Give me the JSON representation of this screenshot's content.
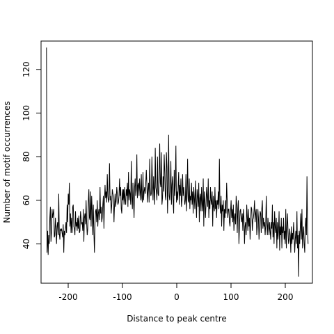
{
  "chart_data": {
    "type": "line",
    "title": "",
    "xlabel": "Distance to peak centre",
    "ylabel": "Number of motif occurrences",
    "xlim": [
      -250,
      250
    ],
    "ylim": [
      22,
      133
    ],
    "xticks": [
      -200,
      -100,
      0,
      100,
      200
    ],
    "yticks": [
      40,
      60,
      80,
      100,
      120
    ],
    "xtick_labels": [
      "-200",
      "-100",
      "0",
      "100",
      "200"
    ],
    "ytick_labels": [
      "40",
      "60",
      "80",
      "100",
      "120"
    ],
    "grid": false,
    "legend": "none",
    "line_color": "#000000",
    "x_range": [
      -240,
      242
    ],
    "series": [
      {
        "values": [
          130,
          36,
          46,
          35,
          44,
          40,
          52,
          57,
          41,
          45,
          56,
          52,
          54,
          56,
          43,
          44,
          52,
          47,
          40,
          48,
          50,
          44,
          63,
          45,
          42,
          47,
          46,
          47,
          45,
          43,
          49,
          36,
          46,
          44,
          47,
          50,
          45,
          58,
          50,
          63,
          58,
          68,
          48,
          54,
          45,
          52,
          45,
          57,
          58,
          48,
          47,
          44,
          55,
          48,
          50,
          46,
          52,
          47,
          53,
          45,
          46,
          55,
          52,
          49,
          50,
          46,
          56,
          41,
          52,
          54,
          49,
          60,
          50,
          44,
          47,
          59,
          65,
          52,
          51,
          64,
          48,
          62,
          55,
          44,
          58,
          45,
          36,
          49,
          55,
          56,
          50,
          60,
          48,
          54,
          56,
          51,
          66,
          54,
          57,
          50,
          52,
          58,
          62,
          47,
          60,
          67,
          61,
          64,
          59,
          72,
          62,
          59,
          61,
          77,
          60,
          62,
          54,
          58,
          65,
          63,
          62,
          50,
          58,
          63,
          57,
          60,
          66,
          63,
          58,
          59,
          62,
          70,
          62,
          66,
          56,
          54,
          65,
          60,
          65,
          58,
          66,
          60,
          58,
          65,
          62,
          68,
          57,
          73,
          60,
          65,
          63,
          58,
          78,
          62,
          56,
          68,
          60,
          52,
          66,
          70,
          62,
          65,
          81,
          61,
          67,
          68,
          62,
          70,
          64,
          60,
          72,
          61,
          59,
          73,
          60,
          64,
          66,
          63,
          68,
          74,
          67,
          59,
          65,
          68,
          59,
          79,
          66,
          62,
          63,
          80,
          68,
          60,
          71,
          64,
          58,
          84,
          66,
          64,
          60,
          80,
          63,
          62,
          70,
          86,
          68,
          66,
          82,
          58,
          61,
          71,
          64,
          81,
          73,
          62,
          60,
          82,
          75,
          54,
          67,
          90,
          62,
          60,
          66,
          78,
          58,
          67,
          71,
          60,
          54,
          74,
          62,
          68,
          85,
          59,
          64,
          60,
          66,
          73,
          58,
          67,
          62,
          70,
          57,
          60,
          72,
          62,
          66,
          62,
          58,
          60,
          72,
          55,
          63,
          79,
          60,
          59,
          70,
          56,
          62,
          60,
          68,
          58,
          64,
          54,
          66,
          61,
          56,
          69,
          60,
          52,
          65,
          62,
          57,
          68,
          50,
          61,
          63,
          55,
          66,
          58,
          55,
          70,
          48,
          64,
          60,
          52,
          58,
          66,
          62,
          57,
          70,
          52,
          60,
          56,
          66,
          60,
          58,
          64,
          48,
          62,
          57,
          55,
          66,
          56,
          60,
          52,
          60,
          58,
          64,
          56,
          79,
          58,
          54,
          62,
          48,
          58,
          55,
          60,
          46,
          56,
          52,
          60,
          54,
          68,
          60,
          52,
          56,
          56,
          50,
          48,
          55,
          60,
          52,
          56,
          50,
          58,
          46,
          52,
          54,
          49,
          62,
          58,
          45,
          56,
          60,
          40,
          48,
          55,
          56,
          52,
          50,
          54,
          46,
          56,
          52,
          40,
          48,
          50,
          44,
          58,
          52,
          46,
          56,
          48,
          52,
          42,
          50,
          57,
          56,
          46,
          51,
          52,
          55,
          60,
          50,
          54,
          56,
          44,
          48,
          56,
          52,
          42,
          48,
          55,
          54,
          45,
          56,
          60,
          47,
          52,
          48,
          50,
          44,
          49,
          62,
          50,
          44,
          52,
          48,
          44,
          50,
          46,
          42,
          50,
          47,
          58,
          43,
          50,
          40,
          55,
          48,
          45,
          52,
          38,
          50,
          42,
          46,
          55,
          37,
          48,
          44,
          52,
          38,
          48,
          45,
          52,
          42,
          46,
          40,
          56,
          38,
          48,
          54,
          46,
          40,
          42,
          47,
          44,
          36,
          48,
          40,
          45,
          42,
          50,
          44,
          36,
          42,
          46,
          40,
          55,
          38,
          44,
          25,
          46,
          40,
          48,
          54,
          42,
          56,
          38,
          44,
          48,
          40,
          36,
          48,
          52,
          44,
          71,
          48,
          40
        ]
      }
    ]
  }
}
